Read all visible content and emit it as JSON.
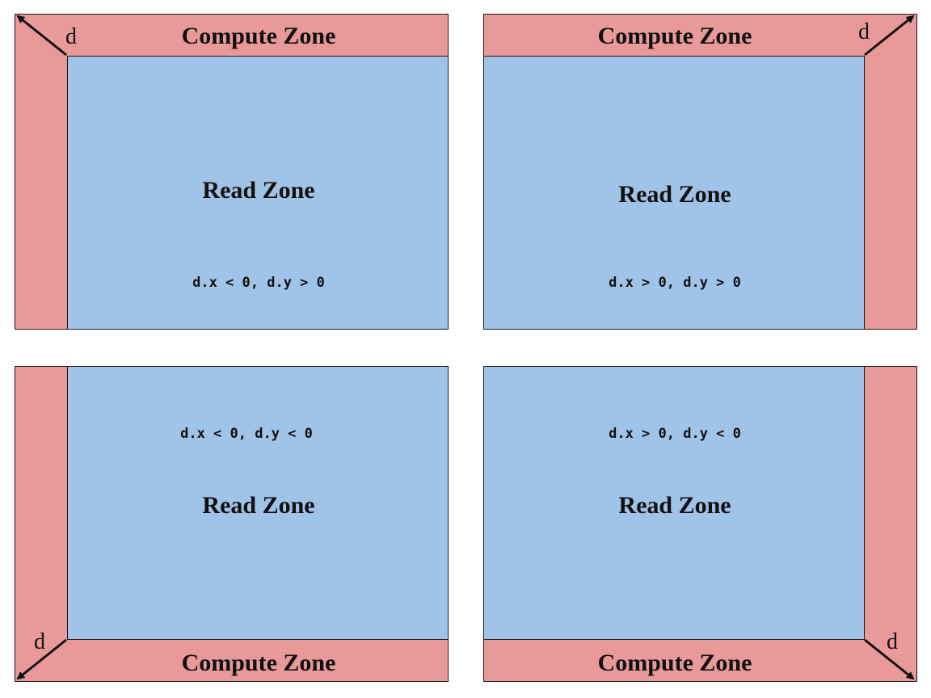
{
  "panels": [
    {
      "compute_label": "Compute Zone",
      "read_label": "Read Zone",
      "condition": "d.x < 0, d.y > 0",
      "vector_label": "d"
    },
    {
      "compute_label": "Compute Zone",
      "read_label": "Read Zone",
      "condition": "d.x > 0, d.y > 0",
      "vector_label": "d"
    },
    {
      "compute_label": "Compute Zone",
      "read_label": "Read Zone",
      "condition": "d.x < 0, d.y < 0",
      "vector_label": "d"
    },
    {
      "compute_label": "Compute Zone",
      "read_label": "Read Zone",
      "condition": "d.x > 0, d.y < 0",
      "vector_label": "d"
    }
  ],
  "colors": {
    "compute_zone": "#e99999",
    "read_zone": "#a0c4e8",
    "border": "#1a1a1a"
  }
}
